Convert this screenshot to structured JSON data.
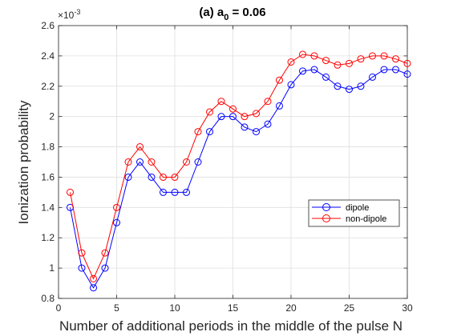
{
  "chart_data": {
    "type": "line",
    "title": "(a) a",
    "title_sub": "0",
    "title_suffix": " = 0.06",
    "xlabel": "Number of additional periods in the middle of the pulse N",
    "ylabel": "Ionization probability",
    "y_exponent_base": "×10",
    "y_exponent_power": "-3",
    "xlim": [
      0,
      30
    ],
    "ylim": [
      0.8,
      2.6
    ],
    "xticks": [
      0,
      5,
      10,
      15,
      20,
      25,
      30
    ],
    "yticks": [
      0.8,
      1,
      1.2,
      1.4,
      1.6,
      1.8,
      2,
      2.2,
      2.4,
      2.6
    ],
    "ytick_labels": [
      "0.8",
      "1",
      "1.2",
      "1.4",
      "1.6",
      "1.8",
      "2",
      "2.2",
      "2.4",
      "2.6"
    ],
    "grid": true,
    "legend_position": "right",
    "x": [
      1,
      2,
      3,
      4,
      5,
      6,
      7,
      8,
      9,
      10,
      11,
      12,
      13,
      14,
      15,
      16,
      17,
      18,
      19,
      20,
      21,
      22,
      23,
      24,
      25,
      26,
      27,
      28,
      29,
      30
    ],
    "series": [
      {
        "name": "dipole",
        "color": "#0000ff",
        "marker": "circle",
        "values": [
          1.4,
          1.0,
          0.87,
          1.0,
          1.3,
          1.6,
          1.7,
          1.6,
          1.5,
          1.5,
          1.5,
          1.7,
          1.9,
          2.0,
          2.0,
          1.93,
          1.9,
          1.95,
          2.07,
          2.21,
          2.3,
          2.31,
          2.26,
          2.2,
          2.18,
          2.2,
          2.26,
          2.31,
          2.31,
          2.28
        ]
      },
      {
        "name": "non-dipole",
        "color": "#ff0000",
        "marker": "circle",
        "values": [
          1.5,
          1.1,
          0.93,
          1.1,
          1.4,
          1.7,
          1.8,
          1.7,
          1.6,
          1.6,
          1.7,
          1.9,
          2.03,
          2.1,
          2.05,
          2.0,
          2.02,
          2.1,
          2.24,
          2.36,
          2.41,
          2.4,
          2.37,
          2.34,
          2.35,
          2.38,
          2.4,
          2.4,
          2.38,
          2.35
        ]
      }
    ]
  }
}
